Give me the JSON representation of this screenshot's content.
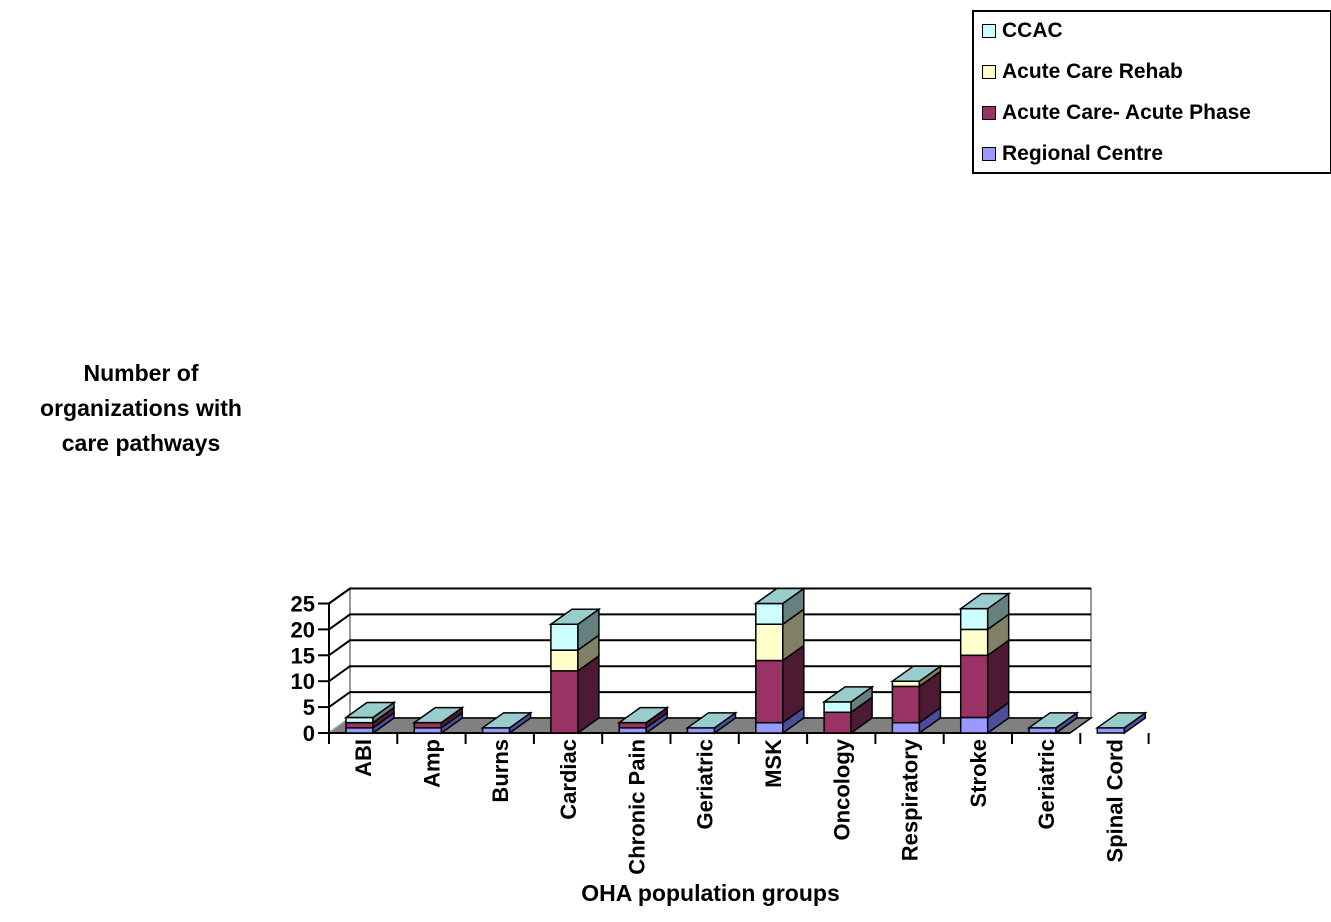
{
  "chart_data": {
    "type": "bar",
    "stacked": true,
    "three_d": true,
    "xlabel": "OHA population groups",
    "ylabel_lines": [
      "Number of",
      "organizations with",
      "care pathways"
    ],
    "ylim": [
      0,
      25
    ],
    "yticks": [
      "0",
      "5",
      "10",
      "15",
      "20",
      "25"
    ],
    "grid": true,
    "legend_position": "top-right",
    "categories": [
      "ABI",
      "Amp",
      "Burns",
      "Cardiac",
      "Chronic Pain",
      "Geriatric",
      "MSK",
      "Oncology",
      "Respiratory",
      "Stroke",
      "Geriatric",
      "Spinal Cord"
    ],
    "series": [
      {
        "name": "Regional Centre",
        "color": "#9999ff",
        "side": "#4d4d99",
        "top": "#b3b3ff",
        "values": [
          1,
          1,
          1,
          0,
          1,
          1,
          2,
          0,
          2,
          3,
          1,
          1
        ]
      },
      {
        "name": "Acute Care- Acute Phase",
        "color": "#993366",
        "side": "#4d1a33",
        "top": "#b3668c",
        "values": [
          1,
          1,
          0,
          12,
          1,
          0,
          12,
          4,
          7,
          12,
          0,
          0
        ]
      },
      {
        "name": "Acute Care Rehab",
        "color": "#ffffcc",
        "side": "#808066",
        "top": "#ffffe0",
        "values": [
          0,
          0,
          0,
          4,
          0,
          0,
          7,
          0,
          1,
          5,
          0,
          0
        ]
      },
      {
        "name": "CCAC",
        "color": "#ccffff",
        "side": "#668080",
        "top": "#99cccc",
        "values": [
          1,
          0,
          0,
          5,
          0,
          0,
          4,
          2,
          0,
          4,
          0,
          0
        ]
      }
    ],
    "legend_order": [
      3,
      2,
      1,
      0
    ]
  }
}
